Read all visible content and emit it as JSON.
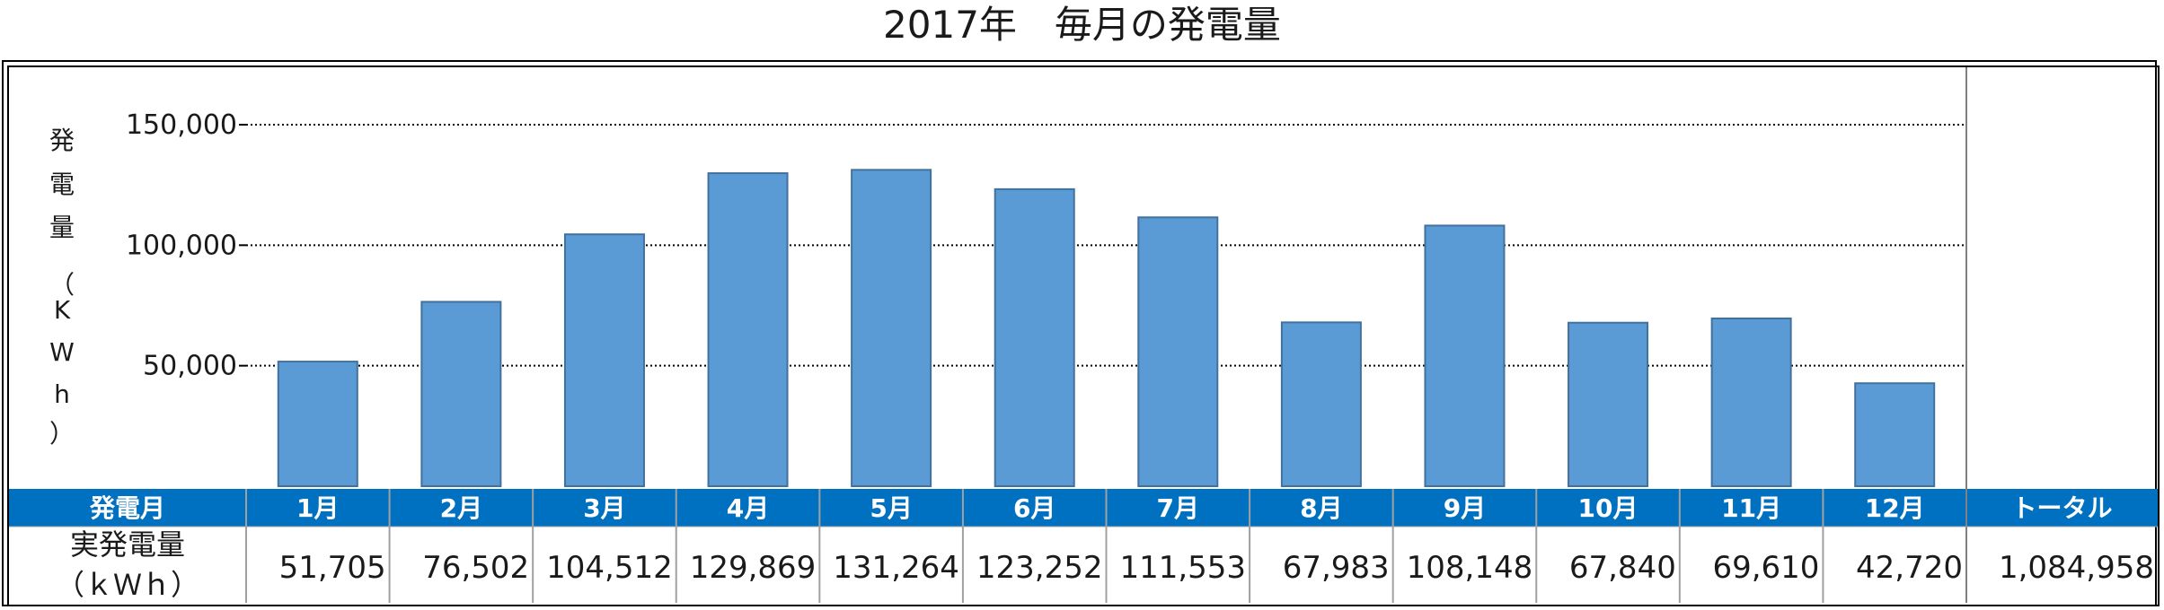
{
  "title": "2017年　毎月の発電量",
  "chart_data": {
    "type": "bar",
    "title": "2017年　毎月の発電量",
    "categories": [
      "1月",
      "2月",
      "3月",
      "4月",
      "5月",
      "6月",
      "7月",
      "8月",
      "9月",
      "10月",
      "11月",
      "12月"
    ],
    "values": [
      51705,
      76502,
      104512,
      129869,
      131264,
      123252,
      111553,
      67983,
      108148,
      67840,
      69610,
      42720
    ],
    "ylabel": "発電量（KWh）",
    "ylabel_chars": [
      "発",
      "電",
      "量",
      "（",
      "K",
      "W",
      "h",
      "）"
    ],
    "ylim": [
      0,
      150000
    ],
    "yticks": [
      50000,
      100000,
      150000
    ],
    "ytick_labels": [
      "50,000",
      "100,000",
      "150,000"
    ],
    "grid": true,
    "grid_style": "dotted",
    "bar_color": "#5B9BD5",
    "bar_edge_color": "#41719C"
  },
  "table": {
    "header_label": "発電月",
    "row_label_line1": "実発電量",
    "row_label_line2": "（ｋＷｈ）",
    "value_labels": [
      "51,705",
      "76,502",
      "104,512",
      "129,869",
      "131,264",
      "123,252",
      "111,553",
      "67,983",
      "108,148",
      "67,840",
      "69,610",
      "42,720"
    ],
    "total_header": "トータル",
    "total_value": "1,084,958",
    "header_color": "#0070C0"
  }
}
